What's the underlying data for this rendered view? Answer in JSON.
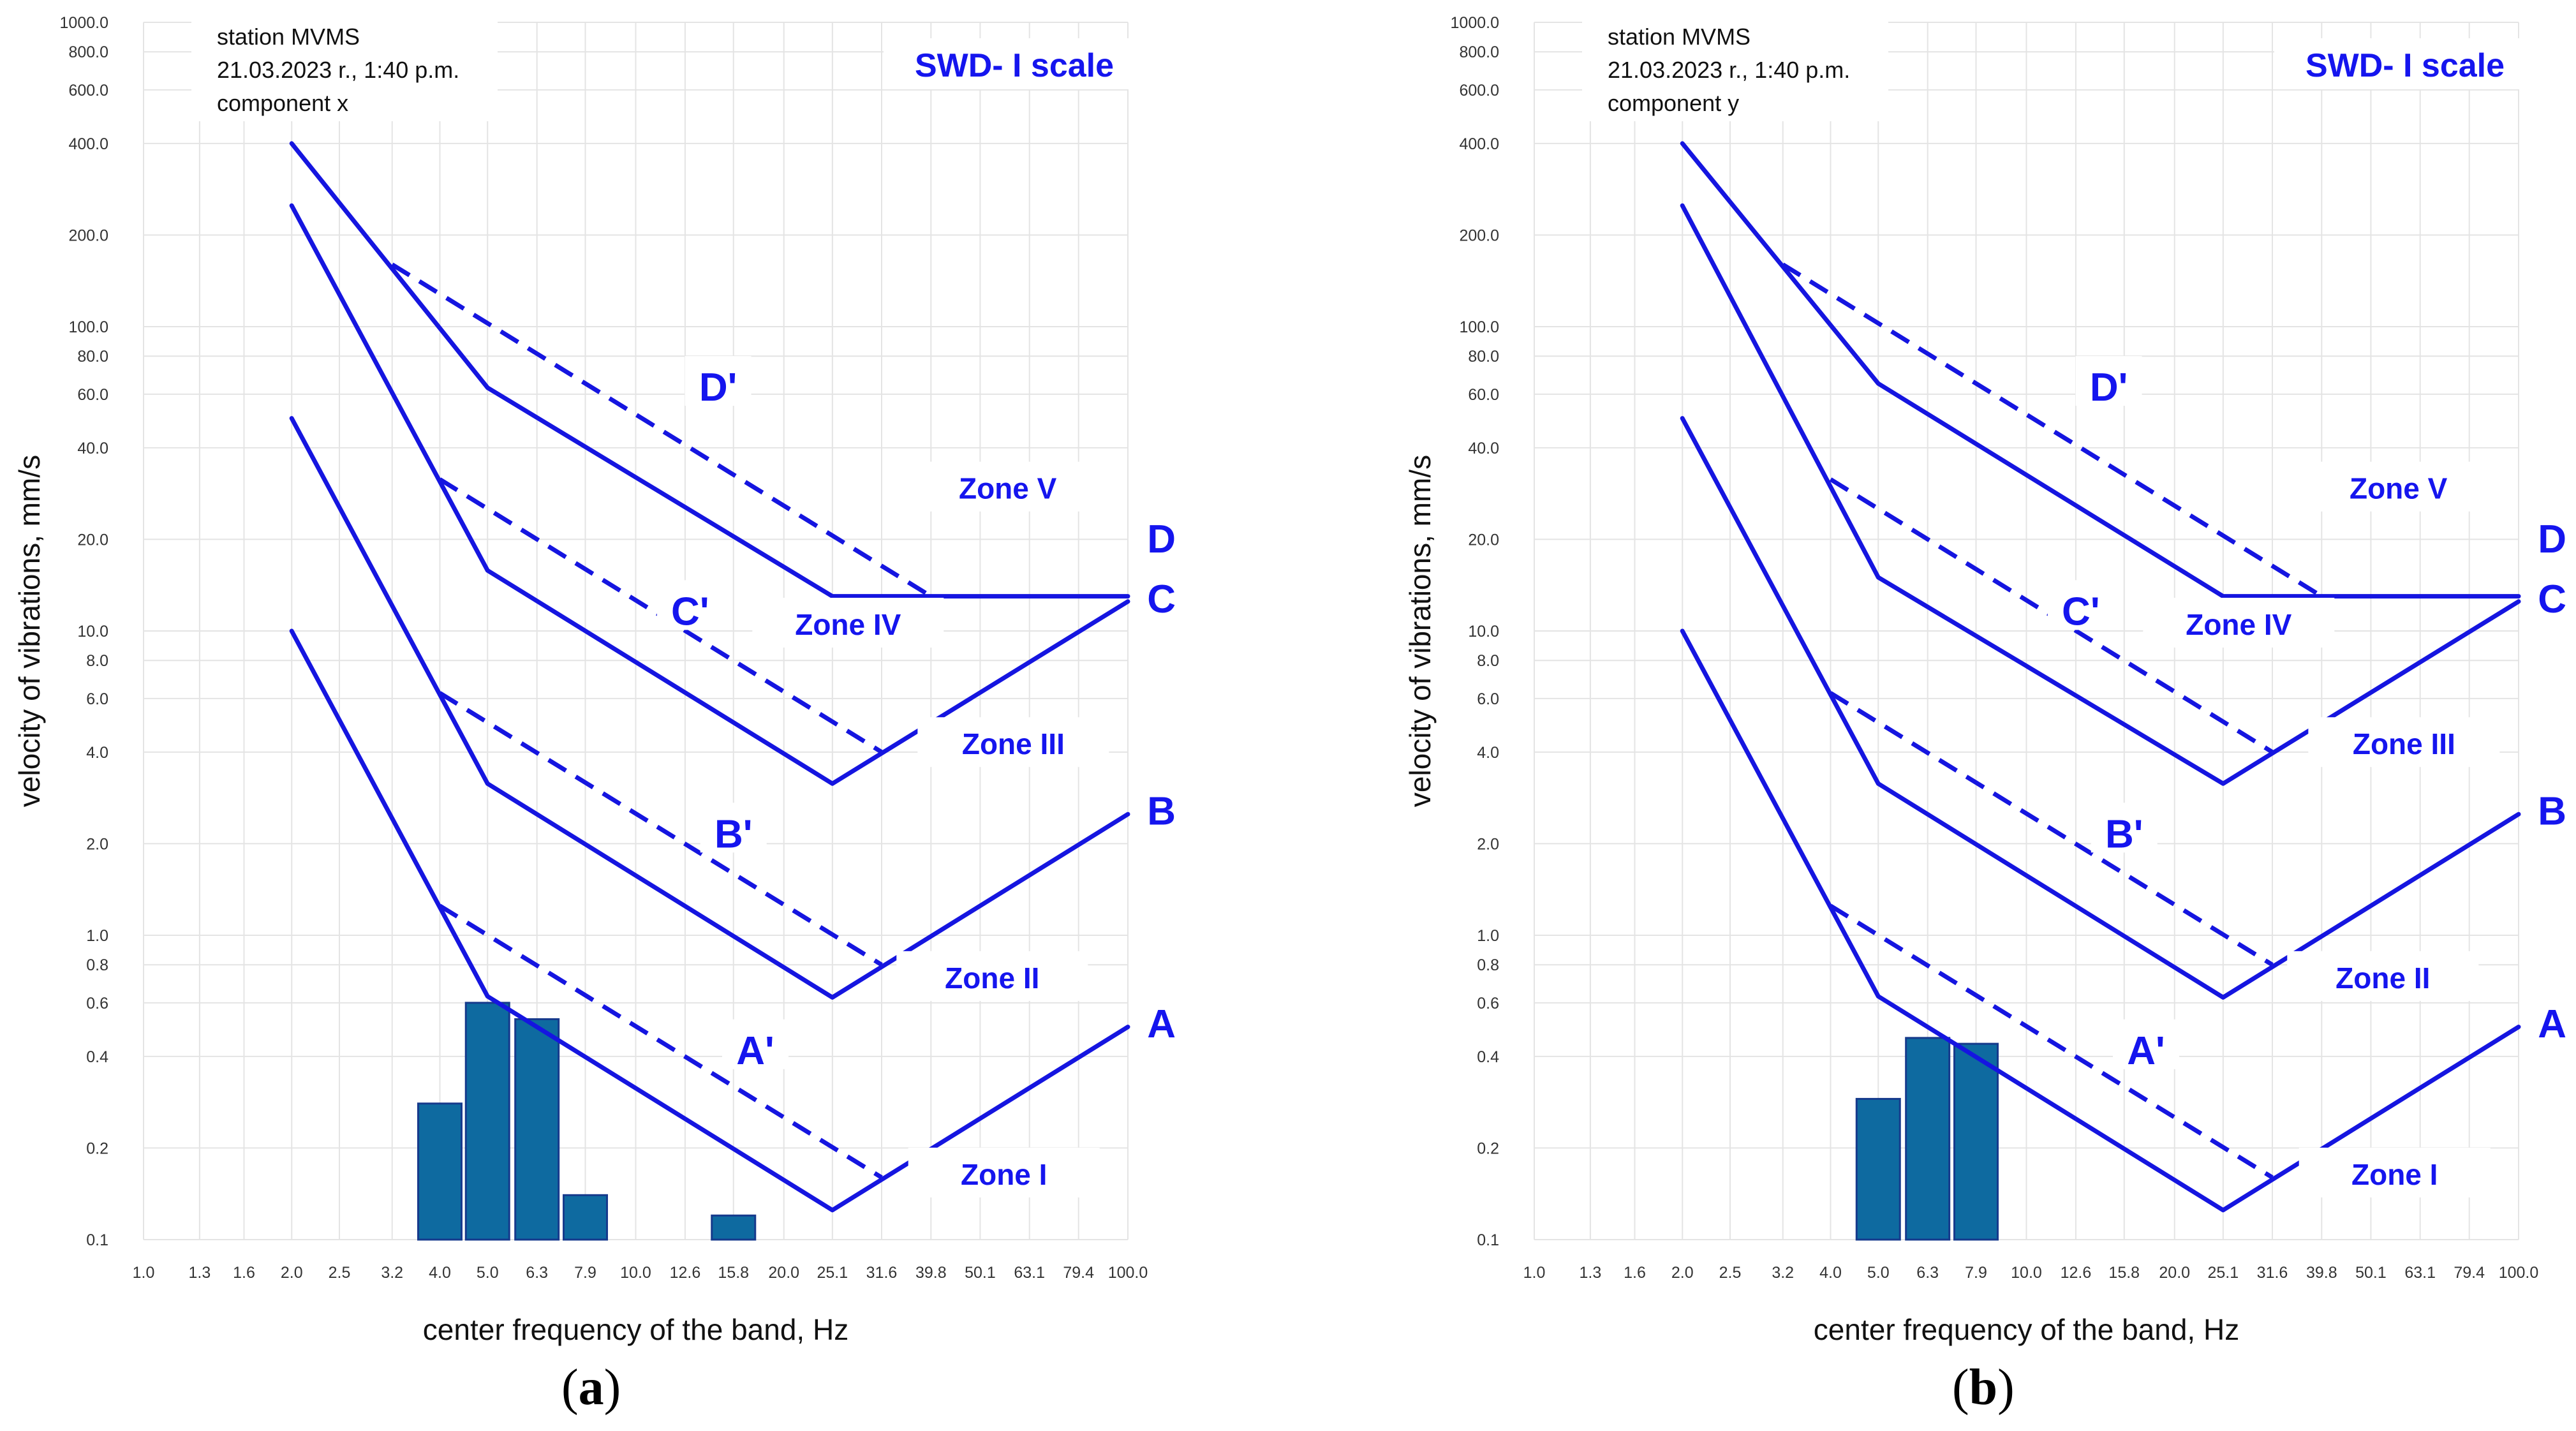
{
  "figure": {
    "captions": [
      {
        "open": "(",
        "letter": "a",
        "close": ")"
      },
      {
        "open": "(",
        "letter": "b",
        "close": ")"
      }
    ]
  },
  "chart_data": [
    {
      "type": "bar",
      "title": "SWD- I scale",
      "info_lines": [
        "station MVMS",
        "21.03.2023 r., 1:40 p.m.",
        "component x"
      ],
      "xlabel": "center frequency of the band, Hz",
      "ylabel": "velocity of vibrations, mm/s",
      "x_scale": "log",
      "y_scale": "log",
      "xlim": [
        1.0,
        100.0
      ],
      "ylim": [
        0.1,
        1000.0
      ],
      "x_ticks": [
        "1.0",
        "1.3",
        "1.6",
        "2.0",
        "2.5",
        "3.2",
        "4.0",
        "5.0",
        "6.3",
        "7.9",
        "10.0",
        "12.6",
        "15.8",
        "20.0",
        "25.1",
        "31.6",
        "39.8",
        "50.1",
        "63.1",
        "79.4",
        "100.0"
      ],
      "y_ticks": [
        "0.1",
        "0.2",
        "0.4",
        "0.6",
        "0.8",
        "1.0",
        "2.0",
        "4.0",
        "6.0",
        "8.0",
        "10.0",
        "20.0",
        "40.0",
        "60.0",
        "80.0",
        "100.0",
        "200.0",
        "400.0",
        "600.0",
        "800.0",
        "1000.0"
      ],
      "bars": [
        {
          "freq": 4.0,
          "value": 0.28
        },
        {
          "freq": 5.0,
          "value": 0.6
        },
        {
          "freq": 6.3,
          "value": 0.53
        },
        {
          "freq": 7.9,
          "value": 0.14
        },
        {
          "freq": 15.8,
          "value": 0.12
        }
      ],
      "curves": [
        {
          "name": "A",
          "points": [
            [
              2.0,
              10.0
            ],
            [
              5.0,
              0.63
            ],
            [
              25.1,
              0.125
            ],
            [
              100.0,
              0.5
            ]
          ]
        },
        {
          "name": "B",
          "points": [
            [
              2.0,
              50.0
            ],
            [
              5.0,
              3.15
            ],
            [
              25.1,
              0.625
            ],
            [
              100.0,
              2.5
            ]
          ]
        },
        {
          "name": "C",
          "points": [
            [
              2.0,
              250.0
            ],
            [
              5.0,
              15.8
            ],
            [
              25.1,
              3.15
            ],
            [
              100.0,
              12.5
            ]
          ]
        },
        {
          "name": "D",
          "points": [
            [
              2.0,
              400.0
            ],
            [
              5.0,
              63.0
            ],
            [
              25.1,
              13.0
            ],
            [
              100.0,
              13.0
            ]
          ]
        }
      ],
      "dashed_curves": [
        {
          "name": "A'",
          "points": [
            [
              4.0,
              1.25
            ],
            [
              31.6,
              0.16
            ]
          ]
        },
        {
          "name": "B'",
          "points": [
            [
              4.0,
              6.25
            ],
            [
              31.6,
              0.8
            ]
          ]
        },
        {
          "name": "C'",
          "points": [
            [
              4.0,
              31.5
            ],
            [
              31.6,
              4.0
            ]
          ]
        },
        {
          "name": "D'",
          "points": [
            [
              3.2,
              160.0
            ],
            [
              39.8,
              13.0
            ]
          ]
        }
      ],
      "curve_labels": [
        {
          "text": "A",
          "freq": 117.0,
          "value": 0.49
        },
        {
          "text": "B",
          "freq": 117.0,
          "value": 2.45
        },
        {
          "text": "C",
          "freq": 117.0,
          "value": 12.2
        },
        {
          "text": "D",
          "freq": 117.0,
          "value": 19.2
        },
        {
          "text": "A'",
          "freq": 17.5,
          "value": 0.4
        },
        {
          "text": "B'",
          "freq": 15.8,
          "value": 2.06
        },
        {
          "text": "C'",
          "freq": 12.9,
          "value": 11.1
        },
        {
          "text": "D'",
          "freq": 14.7,
          "value": 60.5
        }
      ],
      "zones": [
        {
          "text": "Zone I",
          "freq": 56.0,
          "value": 0.156
        },
        {
          "text": "Zone II",
          "freq": 53.0,
          "value": 0.69
        },
        {
          "text": "Zone III",
          "freq": 58.5,
          "value": 4.05
        },
        {
          "text": "Zone IV",
          "freq": 27.0,
          "value": 10.0
        },
        {
          "text": "Zone V",
          "freq": 57.0,
          "value": 28.0
        }
      ]
    },
    {
      "type": "bar",
      "title": "SWD- I scale",
      "info_lines": [
        "station MVMS",
        "21.03.2023 r., 1:40 p.m.",
        "component y"
      ],
      "xlabel": "center frequency of the band, Hz",
      "ylabel": "velocity of vibrations, mm/s",
      "x_scale": "log",
      "y_scale": "log",
      "xlim": [
        1.0,
        100.0
      ],
      "ylim": [
        0.1,
        1000.0
      ],
      "x_ticks": [
        "1.0",
        "1.3",
        "1.6",
        "2.0",
        "2.5",
        "3.2",
        "4.0",
        "5.0",
        "6.3",
        "7.9",
        "10.0",
        "12.6",
        "15.8",
        "20.0",
        "25.1",
        "31.6",
        "39.8",
        "50.1",
        "63.1",
        "79.4",
        "100.0"
      ],
      "y_ticks": [
        "0.1",
        "0.2",
        "0.4",
        "0.6",
        "0.8",
        "1.0",
        "2.0",
        "4.0",
        "6.0",
        "8.0",
        "10.0",
        "20.0",
        "40.0",
        "60.0",
        "80.0",
        "100.0",
        "200.0",
        "400.0",
        "600.0",
        "800.0",
        "1000.0"
      ],
      "bars": [
        {
          "freq": 5.0,
          "value": 0.29
        },
        {
          "freq": 6.3,
          "value": 0.46
        },
        {
          "freq": 7.9,
          "value": 0.44
        }
      ],
      "curves": [
        {
          "name": "A",
          "points": [
            [
              2.0,
              10.0
            ],
            [
              5.0,
              0.63
            ],
            [
              25.1,
              0.125
            ],
            [
              100.0,
              0.5
            ]
          ]
        },
        {
          "name": "B",
          "points": [
            [
              2.0,
              50.0
            ],
            [
              5.0,
              3.15
            ],
            [
              25.1,
              0.625
            ],
            [
              100.0,
              2.5
            ]
          ]
        },
        {
          "name": "C",
          "points": [
            [
              2.0,
              250.0
            ],
            [
              5.0,
              15.0
            ],
            [
              25.1,
              3.15
            ],
            [
              100.0,
              12.5
            ]
          ]
        },
        {
          "name": "D",
          "points": [
            [
              2.0,
              400.0
            ],
            [
              5.0,
              65.0
            ],
            [
              25.1,
              13.0
            ],
            [
              100.0,
              13.0
            ]
          ]
        }
      ],
      "dashed_curves": [
        {
          "name": "A'",
          "points": [
            [
              4.0,
              1.25
            ],
            [
              31.6,
              0.16
            ]
          ]
        },
        {
          "name": "B'",
          "points": [
            [
              4.0,
              6.25
            ],
            [
              31.6,
              0.8
            ]
          ]
        },
        {
          "name": "C'",
          "points": [
            [
              4.0,
              31.5
            ],
            [
              31.6,
              4.0
            ]
          ]
        },
        {
          "name": "D'",
          "points": [
            [
              3.2,
              160.0
            ],
            [
              39.8,
              13.0
            ]
          ]
        }
      ],
      "curve_labels": [
        {
          "text": "A",
          "freq": 117.0,
          "value": 0.49
        },
        {
          "text": "B",
          "freq": 117.0,
          "value": 2.45
        },
        {
          "text": "C",
          "freq": 117.0,
          "value": 12.2
        },
        {
          "text": "D",
          "freq": 117.0,
          "value": 19.2
        },
        {
          "text": "A'",
          "freq": 17.5,
          "value": 0.4
        },
        {
          "text": "B'",
          "freq": 15.8,
          "value": 2.06
        },
        {
          "text": "C'",
          "freq": 12.9,
          "value": 11.1
        },
        {
          "text": "D'",
          "freq": 14.7,
          "value": 60.5
        }
      ],
      "zones": [
        {
          "text": "Zone I",
          "freq": 56.0,
          "value": 0.156
        },
        {
          "text": "Zone II",
          "freq": 53.0,
          "value": 0.69
        },
        {
          "text": "Zone III",
          "freq": 58.5,
          "value": 4.05
        },
        {
          "text": "Zone IV",
          "freq": 27.0,
          "value": 10.0
        },
        {
          "text": "Zone V",
          "freq": 57.0,
          "value": 28.0
        }
      ]
    }
  ]
}
